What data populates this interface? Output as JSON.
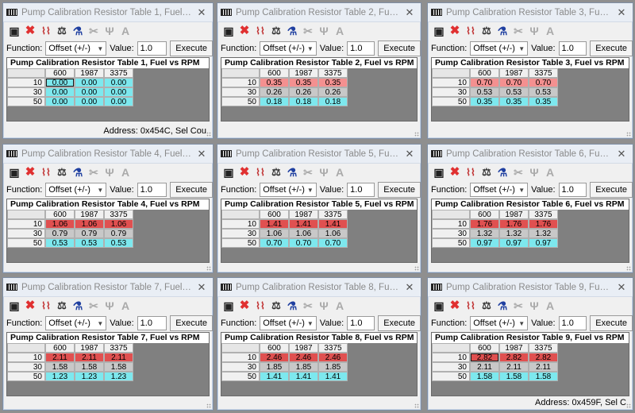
{
  "common": {
    "function_label": "Function:",
    "function_value": "Offset (+/-)",
    "value_label": "Value:",
    "value": "1.0",
    "execute_label": "Execute",
    "columns": [
      "600",
      "1987",
      "3375"
    ],
    "rows": [
      "10",
      "30",
      "50"
    ]
  },
  "icons": [
    "save-icon",
    "delete-icon",
    "graph-icon",
    "balance-icon",
    "flask-icon",
    "cut-icon",
    "merge-icon",
    "text-icon"
  ],
  "windows": [
    {
      "title": "Pump Calibration Resistor Table 1, Fuel vs R...",
      "table_title": "Pump Calibration Resistor Table 1, Fuel vs RPM",
      "values": [
        [
          "0.00",
          "0.00",
          "0.00"
        ],
        [
          "0.00",
          "0.00",
          "0.00"
        ],
        [
          "0.00",
          "0.00",
          "0.00"
        ]
      ],
      "status": "Address: 0x454C, Sel Cou"
    },
    {
      "title": "Pump Calibration Resistor Table 2, Fuel vs...",
      "table_title": "Pump Calibration Resistor Table 2, Fuel vs RPM",
      "values": [
        [
          "0.35",
          "0.35",
          "0.35"
        ],
        [
          "0.26",
          "0.26",
          "0.26"
        ],
        [
          "0.18",
          "0.18",
          "0.18"
        ]
      ],
      "status": ""
    },
    {
      "title": "Pump Calibration Resistor Table 3, Fuel vs...",
      "table_title": "Pump Calibration Resistor Table 3, Fuel vs RPM",
      "values": [
        [
          "0.70",
          "0.70",
          "0.70"
        ],
        [
          "0.53",
          "0.53",
          "0.53"
        ],
        [
          "0.35",
          "0.35",
          "0.35"
        ]
      ],
      "status": ""
    },
    {
      "title": "Pump Calibration Resistor Table 4, Fuel vs R...",
      "table_title": "Pump Calibration Resistor Table 4, Fuel vs RPM",
      "values": [
        [
          "1.06",
          "1.06",
          "1.06"
        ],
        [
          "0.79",
          "0.79",
          "0.79"
        ],
        [
          "0.53",
          "0.53",
          "0.53"
        ]
      ],
      "status": ""
    },
    {
      "title": "Pump Calibration Resistor Table 5, Fuel vs RPM",
      "table_title": "Pump Calibration Resistor Table 5, Fuel vs RPM",
      "values": [
        [
          "1.41",
          "1.41",
          "1.41"
        ],
        [
          "1.06",
          "1.06",
          "1.06"
        ],
        [
          "0.70",
          "0.70",
          "0.70"
        ]
      ],
      "status": ""
    },
    {
      "title": "Pump Calibration Resistor Table 6, Fuel vs...",
      "table_title": "Pump Calibration Resistor Table 6, Fuel vs RPM",
      "values": [
        [
          "1.76",
          "1.76",
          "1.76"
        ],
        [
          "1.32",
          "1.32",
          "1.32"
        ],
        [
          "0.97",
          "0.97",
          "0.97"
        ]
      ],
      "status": ""
    },
    {
      "title": "Pump Calibration Resistor Table 7, Fuel vs R...",
      "table_title": "Pump Calibration Resistor Table 7, Fuel vs RPM",
      "values": [
        [
          "2.11",
          "2.11",
          "2.11"
        ],
        [
          "1.58",
          "1.58",
          "1.58"
        ],
        [
          "1.23",
          "1.23",
          "1.23"
        ]
      ],
      "status": ""
    },
    {
      "title": "Pump Calibration Resistor Table 8, Fuel vs RPM",
      "table_title": "Pump Calibration Resistor Table 8, Fuel vs RPM",
      "values": [
        [
          "2.46",
          "2.46",
          "2.46"
        ],
        [
          "1.85",
          "1.85",
          "1.85"
        ],
        [
          "1.41",
          "1.41",
          "1.41"
        ]
      ],
      "status": ""
    },
    {
      "title": "Pump Calibration Resistor Table 9, Fuel vs...",
      "table_title": "Pump Calibration Resistor Table 9, Fuel vs RPM",
      "values": [
        [
          "2.82",
          "2.82",
          "2.82"
        ],
        [
          "2.11",
          "2.11",
          "2.11"
        ],
        [
          "1.58",
          "1.58",
          "1.58"
        ]
      ],
      "status": "Address: 0x459F, Sel C"
    }
  ]
}
